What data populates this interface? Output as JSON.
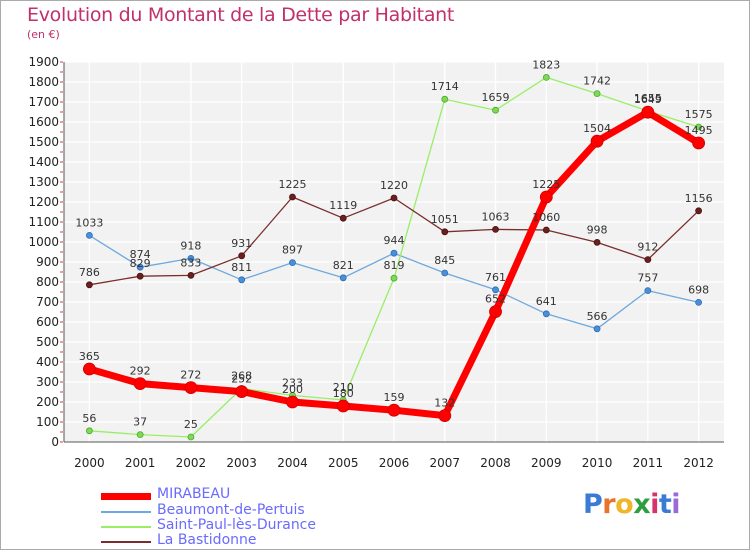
{
  "chart_data": {
    "type": "line",
    "title": "Evolution du Montant de la Dette par Habitant",
    "subtitle": "(en €)",
    "categories": [
      "2000",
      "2001",
      "2002",
      "2003",
      "2004",
      "2005",
      "2006",
      "2007",
      "2008",
      "2009",
      "2010",
      "2011",
      "2012"
    ],
    "ylim": [
      0,
      1900
    ],
    "yticks": [
      0,
      100,
      200,
      300,
      400,
      500,
      600,
      700,
      800,
      900,
      1000,
      1100,
      1200,
      1300,
      1400,
      1500,
      1600,
      1700,
      1800,
      1900
    ],
    "grid": true,
    "legend_position": "bottom-left",
    "series": [
      {
        "name": "MIRABEAU",
        "color": "#ff0000",
        "values": [
          365,
          292,
          272,
          252,
          200,
          180,
          159,
          132,
          652,
          1225,
          1504,
          1649,
          1495
        ]
      },
      {
        "name": "Beaumont-de-Pertuis",
        "color": "#6fa8dc",
        "values": [
          1033,
          874,
          918,
          811,
          897,
          821,
          944,
          845,
          761,
          641,
          566,
          757,
          698
        ]
      },
      {
        "name": "Saint-Paul-lès-Durance",
        "color": "#99ee66",
        "values": [
          56,
          37,
          25,
          268,
          233,
          210,
          819,
          1714,
          1659,
          1823,
          1742,
          1655,
          1575
        ]
      },
      {
        "name": "La Bastidonne",
        "color": "#7b2d2d",
        "values": [
          786,
          829,
          833,
          931,
          1225,
          1119,
          1220,
          1051,
          1063,
          1060,
          998,
          912,
          1156
        ]
      }
    ]
  },
  "brand": {
    "text": "Proxiti",
    "letters": [
      "P",
      "r",
      "o",
      "x",
      "i",
      "t",
      "i"
    ],
    "colors": [
      "#3a7bd5",
      "#e8732a",
      "#f0b62a",
      "#2f9e3f",
      "#d6336c",
      "#3a7bd5",
      "#9b6ad6"
    ]
  }
}
